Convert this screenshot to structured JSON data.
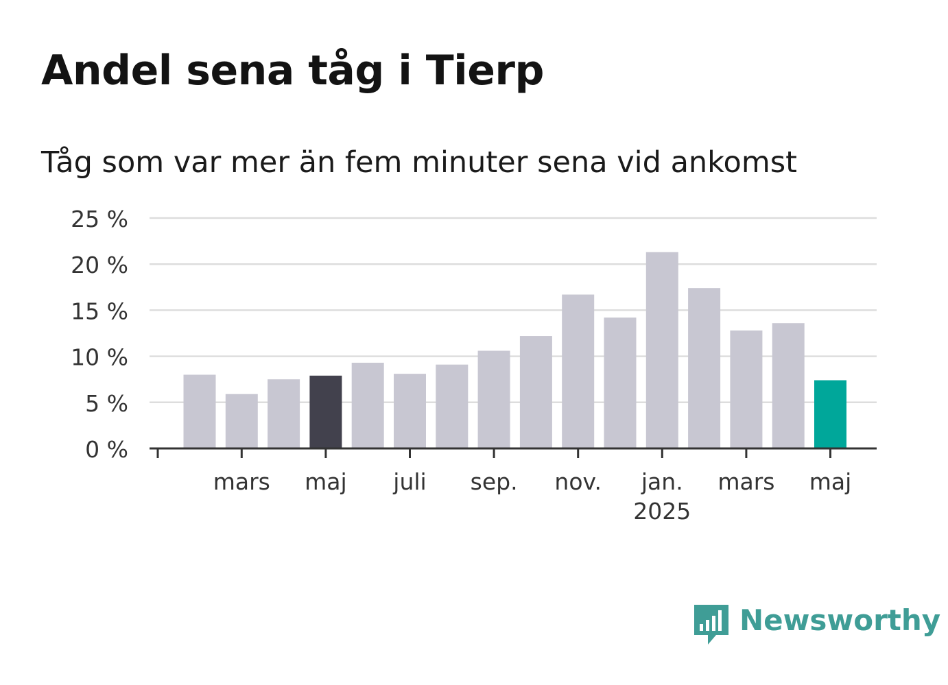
{
  "title": "Andel sena tåg i Tierp",
  "subtitle": "Tåg som var mer än fem minuter sena vid ankomst",
  "brand": {
    "name": "Newsworthy",
    "color": "#3f9d96",
    "icon": "newsworthy-logo-icon"
  },
  "colors": {
    "bar": "#c8c7d2",
    "highlight": "#42414d",
    "latest": "#00a79a",
    "grid": "#dddddd",
    "axis": "#333333"
  },
  "chart_data": {
    "type": "bar",
    "title": "Andel sena tåg i Tierp",
    "subtitle": "Tåg som var mer än fem minuter sena vid ankomst",
    "xlabel": "",
    "ylabel": "",
    "ylim": [
      0,
      25
    ],
    "yticks": [
      "0 %",
      "5 %",
      "10 %",
      "15 %",
      "20 %",
      "25 %"
    ],
    "grid": true,
    "legend": "none",
    "categories": [
      "2024-02",
      "2024-03",
      "2024-04",
      "2024-05",
      "2024-06",
      "2024-07",
      "2024-08",
      "2024-09",
      "2024-10",
      "2024-11",
      "2024-12",
      "2025-01",
      "2025-02",
      "2025-03",
      "2025-04",
      "2025-05"
    ],
    "values": [
      8.0,
      5.9,
      7.5,
      7.9,
      9.3,
      8.1,
      9.1,
      10.6,
      12.2,
      16.7,
      14.2,
      21.3,
      17.4,
      12.8,
      13.6,
      7.4
    ],
    "highlight_index": 3,
    "latest_index": 15,
    "x_ticks": [
      {
        "index": 1,
        "label": "mars"
      },
      {
        "index": 3,
        "label": "maj"
      },
      {
        "index": 5,
        "label": "juli"
      },
      {
        "index": 7,
        "label": "sep."
      },
      {
        "index": 9,
        "label": "nov."
      },
      {
        "index": 11,
        "label": "jan.",
        "sublabel": "2025"
      },
      {
        "index": 13,
        "label": "mars"
      },
      {
        "index": 15,
        "label": "maj"
      }
    ]
  }
}
